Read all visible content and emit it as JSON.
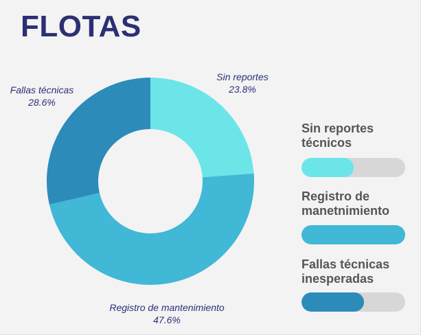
{
  "title": "FLOTAS",
  "chart_data": {
    "type": "pie",
    "hole": true,
    "title": "FLOTAS",
    "slices": [
      {
        "label": "Sin reportes",
        "value": 23.8,
        "value_label": "23.8%",
        "color": "#6ce5e8"
      },
      {
        "label": "Registro de mantenimiento",
        "value": 47.6,
        "value_label": "47.6%",
        "color": "#41b8d5"
      },
      {
        "label": "Fallas técnicas",
        "value": 28.6,
        "value_label": "28.6%",
        "color": "#2d8bba"
      }
    ]
  },
  "legend": {
    "items": [
      {
        "label_line1": "Sin reportes",
        "label_line2": "técnicos",
        "fill_fraction": 0.5,
        "color": "#6ce5e8"
      },
      {
        "label_line1": "Registro de",
        "label_line2": "manetnimiento",
        "fill_fraction": 1.0,
        "color": "#41b8d5"
      },
      {
        "label_line1": "Fallas técnicas",
        "label_line2": "inesperadas",
        "fill_fraction": 0.6,
        "color": "#2d8bba"
      }
    ]
  }
}
